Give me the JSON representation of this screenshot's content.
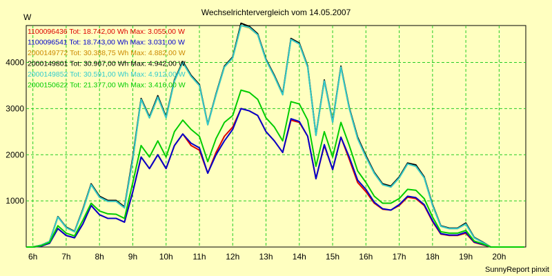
{
  "chart_data": {
    "type": "line",
    "title": "Wechselrichtervergleich vom 14.05.2007",
    "ylabel": "W",
    "xlabel": "",
    "footer": "SunnyReport pinxit",
    "ylim": [
      0,
      4800
    ],
    "xlim": [
      5.8,
      20.8
    ],
    "y_ticks": [
      1000,
      2000,
      3000,
      4000
    ],
    "x_ticks": [
      6,
      7,
      8,
      9,
      10,
      11,
      12,
      13,
      14,
      15,
      16,
      17,
      18,
      19,
      20
    ],
    "x_tick_labels": [
      "6h",
      "7h",
      "8h",
      "9h",
      "10h",
      "11h",
      "12h",
      "13h",
      "14h",
      "15h",
      "16h",
      "17h",
      "18h",
      "19h",
      "20h"
    ],
    "grid": true,
    "legend_position": "top-left",
    "colors": {
      "background": "#ffffc0",
      "grid": "#22cc22"
    },
    "x": [
      5.8,
      6.0,
      6.25,
      6.5,
      6.75,
      7.0,
      7.25,
      7.5,
      7.75,
      8.0,
      8.25,
      8.5,
      8.75,
      9.0,
      9.25,
      9.5,
      9.75,
      10.0,
      10.25,
      10.5,
      10.75,
      11.0,
      11.25,
      11.5,
      11.75,
      12.0,
      12.25,
      12.5,
      12.75,
      13.0,
      13.25,
      13.5,
      13.75,
      14.0,
      14.25,
      14.5,
      14.75,
      15.0,
      15.25,
      15.5,
      15.75,
      16.0,
      16.25,
      16.5,
      16.75,
      17.0,
      17.25,
      17.5,
      17.75,
      18.0,
      18.25,
      18.5,
      18.75,
      19.0,
      19.25,
      19.5,
      19.75,
      20.0,
      20.25,
      20.5,
      20.75
    ],
    "series": [
      {
        "name": "1100096436",
        "legend_text": "1100096436 Tot: 18.742,00 Wh Max: 3.055,00 W",
        "color": "#dd0000",
        "values": [
          0,
          0,
          20,
          80,
          400,
          250,
          200,
          500,
          900,
          700,
          620,
          620,
          540,
          1200,
          1950,
          1700,
          2000,
          1700,
          2200,
          2450,
          2200,
          2100,
          1600,
          2050,
          2400,
          2600,
          3000,
          2950,
          2850,
          2500,
          2300,
          2050,
          2750,
          2700,
          2400,
          1480,
          2200,
          1680,
          2380,
          1900,
          1400,
          1200,
          950,
          820,
          800,
          900,
          1080,
          1050,
          900,
          550,
          280,
          250,
          250,
          300,
          100,
          50,
          0,
          0,
          0,
          0,
          0
        ]
      },
      {
        "name": "1100096541",
        "legend_text": "1100096541 Tot: 18.743,00 Wh Max: 3.031,00 W",
        "color": "#0000cc",
        "values": [
          0,
          0,
          20,
          80,
          400,
          250,
          200,
          500,
          900,
          700,
          620,
          620,
          540,
          1200,
          1950,
          1700,
          2000,
          1700,
          2200,
          2450,
          2250,
          2150,
          1600,
          2000,
          2300,
          2550,
          3000,
          2950,
          2850,
          2500,
          2300,
          2050,
          2780,
          2720,
          2400,
          1480,
          2220,
          1680,
          2380,
          1950,
          1450,
          1250,
          970,
          830,
          800,
          920,
          1100,
          1070,
          920,
          570,
          290,
          260,
          260,
          320,
          110,
          60,
          0,
          0,
          0,
          0,
          0
        ]
      },
      {
        "name": "2000149772",
        "legend_text": "2000149772 Tot: 30.388,75 Wh Max: 4.882,00 W",
        "color": "#cc8800",
        "values": [
          0,
          0,
          40,
          120,
          650,
          420,
          330,
          800,
          1350,
          1080,
          990,
          990,
          850,
          1900,
          3200,
          2800,
          3250,
          2800,
          3600,
          4000,
          3700,
          3500,
          2650,
          3300,
          3900,
          4100,
          4800,
          4750,
          4600,
          4050,
          3700,
          3300,
          4500,
          4400,
          3900,
          2420,
          3600,
          2700,
          3900,
          3000,
          2350,
          1950,
          1600,
          1350,
          1300,
          1500,
          1800,
          1750,
          1500,
          900,
          450,
          400,
          400,
          500,
          200,
          100,
          0,
          0,
          0,
          0,
          0
        ]
      },
      {
        "name": "2000149801",
        "legend_text": "2000149801 Tot: 30.967,00 Wh Max: 4.942,00 W",
        "color": "#000000",
        "values": [
          0,
          0,
          40,
          120,
          660,
          430,
          340,
          820,
          1370,
          1100,
          1010,
          1010,
          870,
          1950,
          3220,
          2820,
          3280,
          2820,
          3620,
          4020,
          3720,
          3520,
          2660,
          3320,
          3920,
          4120,
          4850,
          4780,
          4620,
          4070,
          3720,
          3320,
          4520,
          4420,
          3920,
          2430,
          3620,
          2720,
          3920,
          3020,
          2380,
          1980,
          1620,
          1370,
          1320,
          1520,
          1820,
          1780,
          1520,
          920,
          460,
          410,
          410,
          520,
          210,
          110,
          0,
          0,
          0,
          0,
          0
        ]
      },
      {
        "name": "2000149852",
        "legend_text": "2000149852 Tot: 30.591,00 Wh Max: 4.912,00 W",
        "color": "#33cccc",
        "values": [
          0,
          0,
          40,
          120,
          650,
          420,
          330,
          800,
          1350,
          1080,
          990,
          990,
          850,
          1900,
          3200,
          2800,
          3250,
          2800,
          3600,
          4000,
          3700,
          3500,
          2650,
          3300,
          3900,
          4100,
          4800,
          4760,
          4600,
          4050,
          3700,
          3300,
          4500,
          4400,
          3900,
          2420,
          3600,
          2700,
          3900,
          3000,
          2350,
          1950,
          1600,
          1350,
          1300,
          1500,
          1800,
          1750,
          1500,
          900,
          450,
          400,
          400,
          500,
          200,
          100,
          0,
          0,
          0,
          0,
          0
        ]
      },
      {
        "name": "2000150622",
        "legend_text": "2000150622 Tot: 21.377,00 Wh Max: 3.416,00 W",
        "color": "#00cc00",
        "values": [
          0,
          0,
          30,
          100,
          460,
          300,
          240,
          580,
          950,
          780,
          720,
          710,
          620,
          1400,
          2200,
          1950,
          2300,
          1950,
          2500,
          2750,
          2550,
          2400,
          1850,
          2350,
          2700,
          2850,
          3400,
          3350,
          3200,
          2800,
          2600,
          2300,
          3150,
          3100,
          2750,
          1750,
          2500,
          1950,
          2700,
          2200,
          1650,
          1400,
          1100,
          950,
          950,
          1050,
          1250,
          1230,
          1050,
          650,
          330,
          300,
          300,
          360,
          130,
          70,
          0,
          0,
          0,
          0,
          0
        ]
      }
    ]
  }
}
